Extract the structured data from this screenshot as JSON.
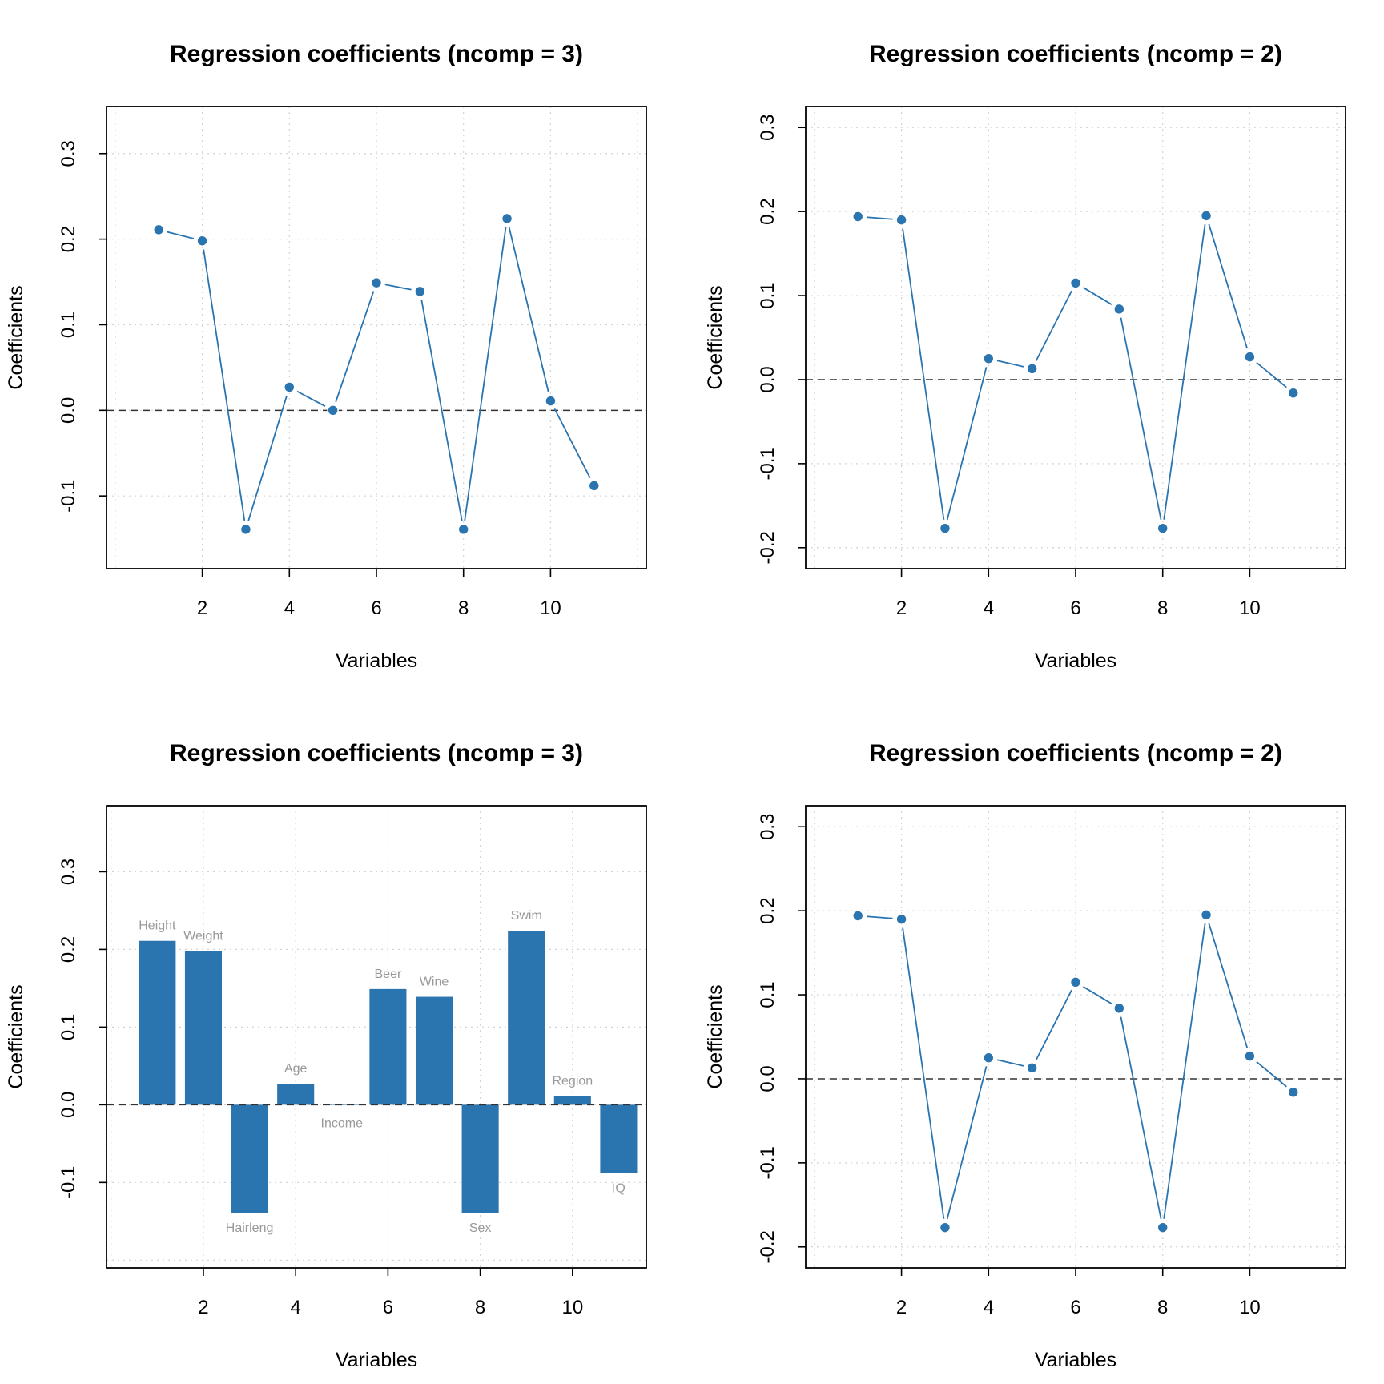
{
  "colors": {
    "series": "#2a74b0",
    "grid": "#d3d3d3",
    "zero_line": "#333333",
    "bar_label": "#999999"
  },
  "chart_data": [
    {
      "type": "line",
      "title": "Regression coefficients (ncomp = 3)",
      "xlabel": "Variables",
      "ylabel": "Coefficients",
      "xlim": [
        -0.2,
        12.2
      ],
      "ylim": [
        -0.185,
        0.355
      ],
      "xticks": [
        2,
        4,
        6,
        8,
        10
      ],
      "xtick_labels": [
        "2",
        "4",
        "6",
        "8",
        "10"
      ],
      "yticks": [
        -0.1,
        0.0,
        0.1,
        0.2,
        0.3
      ],
      "ytick_labels": [
        "-0.1",
        "0.0",
        "0.1",
        "0.2",
        "0.3"
      ],
      "grid": true,
      "x": [
        1,
        2,
        3,
        4,
        5,
        6,
        7,
        8,
        9,
        10,
        11
      ],
      "values": [
        0.211,
        0.198,
        -0.139,
        0.027,
        0.0,
        0.149,
        0.139,
        -0.139,
        0.224,
        0.011,
        -0.088
      ]
    },
    {
      "type": "line",
      "title": "Regression coefficients (ncomp = 2)",
      "xlabel": "Variables",
      "ylabel": "Coefficients",
      "xlim": [
        -0.2,
        12.2
      ],
      "ylim": [
        -0.225,
        0.325
      ],
      "xticks": [
        2,
        4,
        6,
        8,
        10
      ],
      "xtick_labels": [
        "2",
        "4",
        "6",
        "8",
        "10"
      ],
      "yticks": [
        -0.2,
        -0.1,
        0.0,
        0.1,
        0.2,
        0.3
      ],
      "ytick_labels": [
        "-0.2",
        "-0.1",
        "0.0",
        "0.1",
        "0.2",
        "0.3"
      ],
      "grid": true,
      "x": [
        1,
        2,
        3,
        4,
        5,
        6,
        7,
        8,
        9,
        10,
        11
      ],
      "values": [
        0.194,
        0.19,
        -0.177,
        0.025,
        0.013,
        0.115,
        0.084,
        -0.177,
        0.195,
        0.027,
        -0.016
      ]
    },
    {
      "type": "bar",
      "title": "Regression coefficients (ncomp = 3)",
      "xlabel": "Variables",
      "ylabel": "Coefficients",
      "xlim": [
        -0.1,
        11.6
      ],
      "ylim": [
        -0.21,
        0.385
      ],
      "xticks": [
        2,
        4,
        6,
        8,
        10
      ],
      "xtick_labels": [
        "2",
        "4",
        "6",
        "8",
        "10"
      ],
      "yticks": [
        -0.1,
        0.0,
        0.1,
        0.2,
        0.3
      ],
      "ytick_labels": [
        "-0.1",
        "0.0",
        "0.1",
        "0.2",
        "0.3"
      ],
      "grid": true,
      "x": [
        1,
        2,
        3,
        4,
        5,
        6,
        7,
        8,
        9,
        10,
        11
      ],
      "categories": [
        "Height",
        "Weight",
        "Hairleng",
        "Age",
        "Income",
        "Beer",
        "Wine",
        "Sex",
        "Swim",
        "Region",
        "IQ"
      ],
      "values": [
        0.211,
        0.198,
        -0.139,
        0.027,
        0.0,
        0.149,
        0.139,
        -0.139,
        0.224,
        0.011,
        -0.088
      ]
    },
    {
      "type": "line",
      "title": "Regression coefficients (ncomp = 2)",
      "xlabel": "Variables",
      "ylabel": "Coefficients",
      "xlim": [
        -0.2,
        12.2
      ],
      "ylim": [
        -0.225,
        0.325
      ],
      "xticks": [
        2,
        4,
        6,
        8,
        10
      ],
      "xtick_labels": [
        "2",
        "4",
        "6",
        "8",
        "10"
      ],
      "yticks": [
        -0.2,
        -0.1,
        0.0,
        0.1,
        0.2,
        0.3
      ],
      "ytick_labels": [
        "-0.2",
        "-0.1",
        "0.0",
        "0.1",
        "0.2",
        "0.3"
      ],
      "grid": true,
      "x": [
        1,
        2,
        3,
        4,
        5,
        6,
        7,
        8,
        9,
        10,
        11
      ],
      "values": [
        0.194,
        0.19,
        -0.177,
        0.025,
        0.013,
        0.115,
        0.084,
        -0.177,
        0.195,
        0.027,
        -0.016
      ]
    }
  ]
}
